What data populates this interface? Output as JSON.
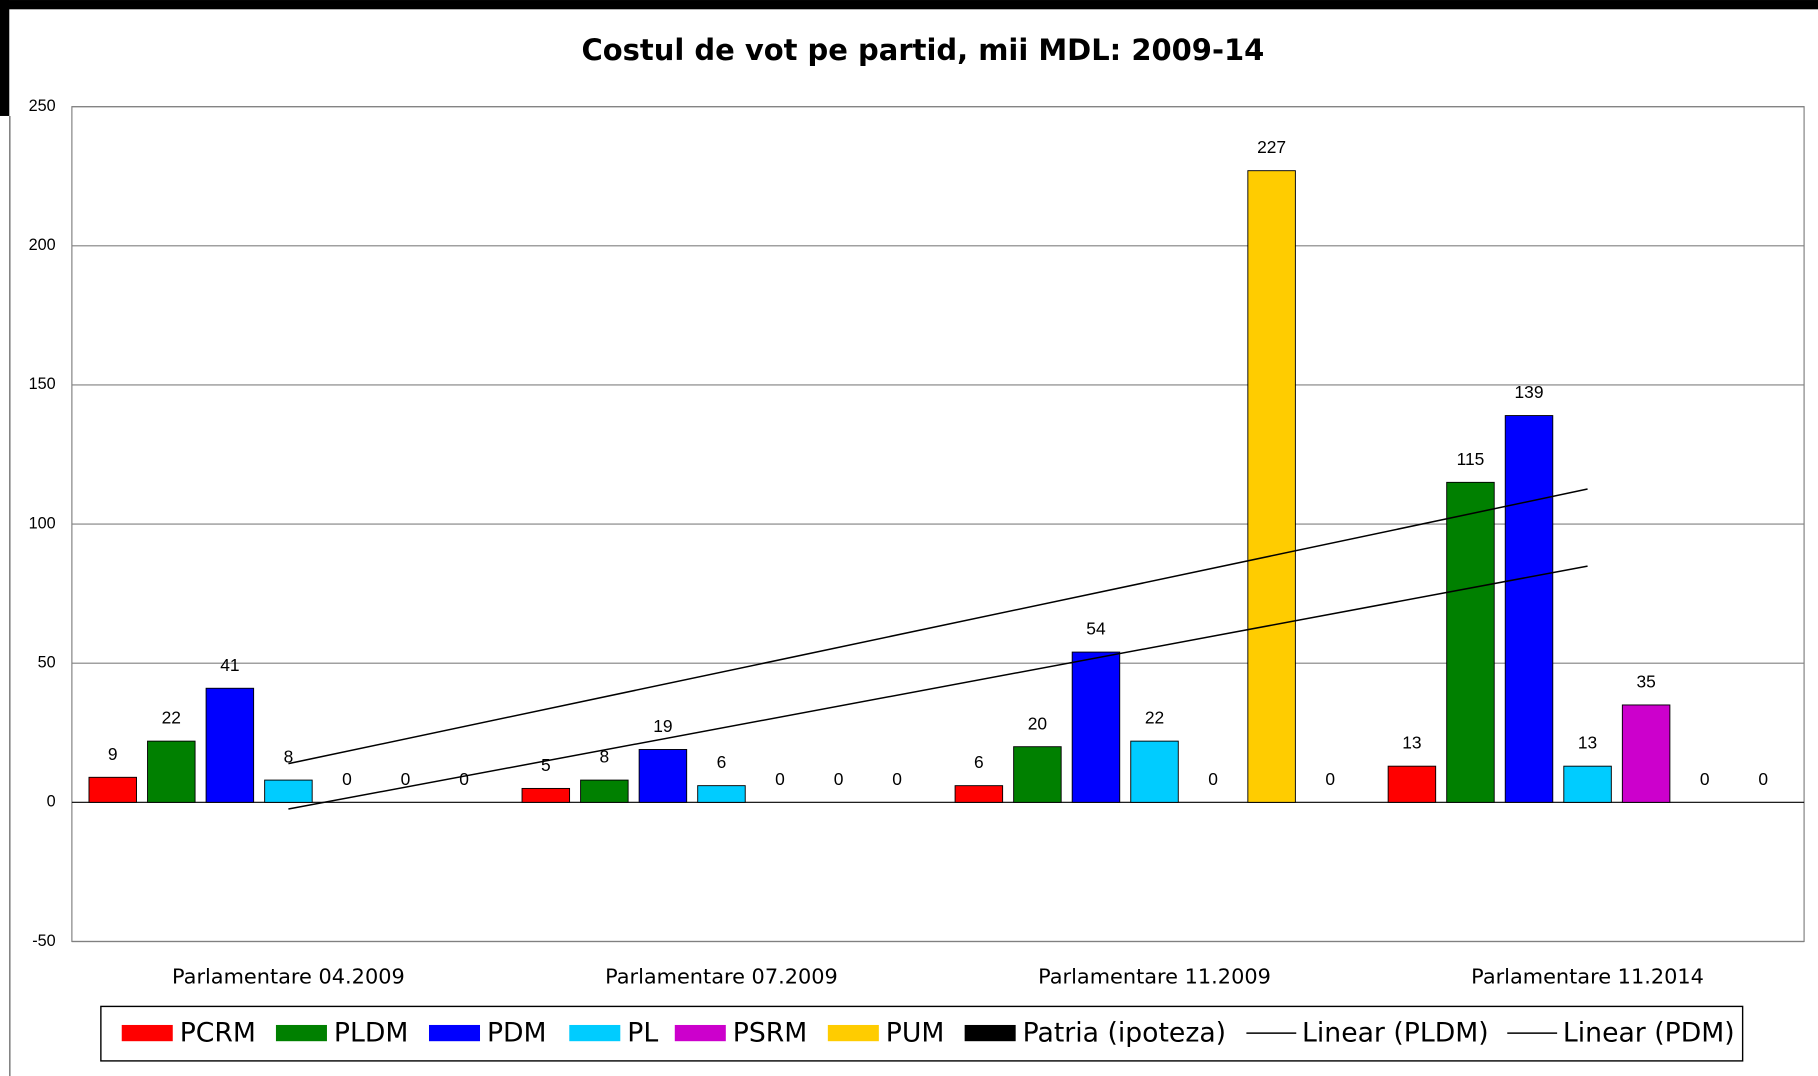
{
  "chart_data": {
    "type": "bar",
    "title": "Costul de vot pe partid, mii MDL: 2009-14",
    "categories": [
      "Parlamentare 04.2009",
      "Parlamentare 07.2009",
      "Parlamentare 11.2009",
      "Parlamentare 11.2014"
    ],
    "series": [
      {
        "name": "PCRM",
        "color": "#ff0000",
        "values": [
          9,
          5,
          6,
          13
        ]
      },
      {
        "name": "PLDM",
        "color": "#008000",
        "values": [
          22,
          8,
          20,
          115
        ]
      },
      {
        "name": "PDM",
        "color": "#0000ff",
        "values": [
          41,
          19,
          54,
          139
        ]
      },
      {
        "name": "PL",
        "color": "#00ccff",
        "values": [
          8,
          6,
          22,
          13
        ]
      },
      {
        "name": "PSRM",
        "color": "#cc00cc",
        "values": [
          0,
          0,
          0,
          35
        ]
      },
      {
        "name": "PUM",
        "color": "#ffcc00",
        "values": [
          0,
          0,
          227,
          0
        ]
      },
      {
        "name": "Patria (ipoteza)",
        "color": "#000000",
        "values": [
          0,
          0,
          0,
          0
        ]
      }
    ],
    "trendlines": [
      {
        "name": "Linear (PLDM)",
        "color": "#000000"
      },
      {
        "name": "Linear (PDM)",
        "color": "#000000"
      }
    ],
    "ylim": [
      -50,
      250
    ],
    "yticks": [
      -50,
      0,
      50,
      100,
      150,
      200,
      250
    ],
    "grid": true,
    "legend": "bottom"
  }
}
